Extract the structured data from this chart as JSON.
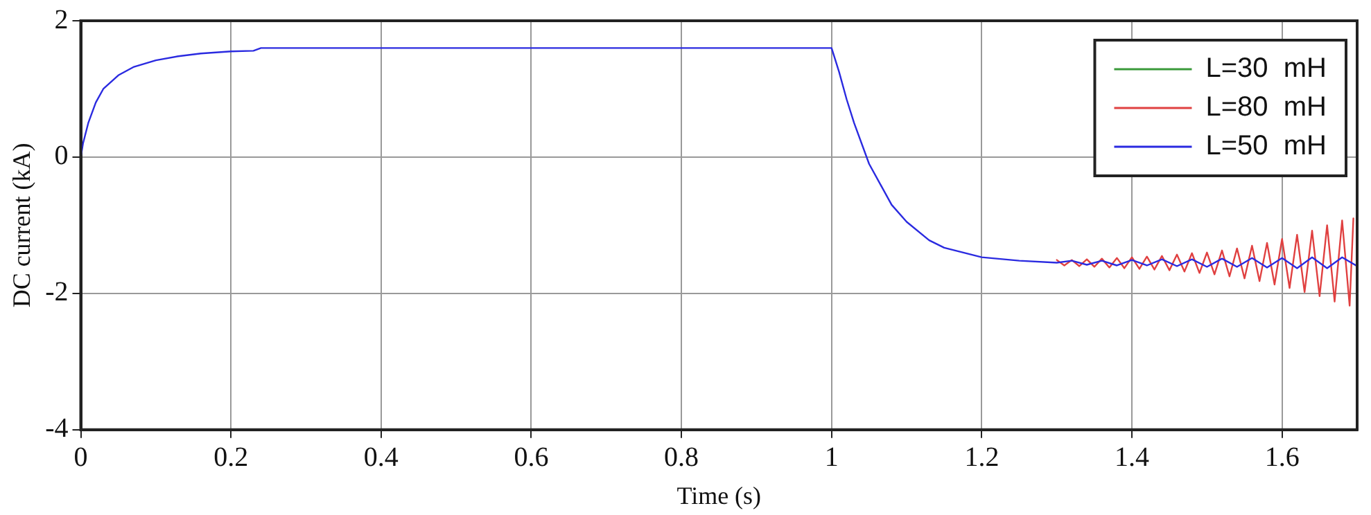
{
  "chart_data": {
    "type": "line",
    "xlabel": "Time (s)",
    "ylabel": "DC current (kA)",
    "xlim": [
      0,
      1.7
    ],
    "xticks": [
      0,
      0.2,
      0.4,
      0.6,
      0.8,
      1,
      1.2,
      1.4,
      1.6
    ],
    "ylim": [
      -4,
      2
    ],
    "yticks": [
      -4,
      -2,
      0,
      2
    ],
    "grid": true,
    "legend": "top right",
    "marker": "none",
    "line_style": "solid",
    "series": [
      {
        "name": "L=30  mH",
        "color": "#3a9a3a"
      },
      {
        "name": "L=80  mH",
        "color": "#e04040",
        "x": [
          1.3,
          1.31,
          1.32,
          1.33,
          1.34,
          1.35,
          1.36,
          1.37,
          1.38,
          1.39,
          1.4,
          1.41,
          1.42,
          1.43,
          1.44,
          1.45,
          1.46,
          1.47,
          1.48,
          1.49,
          1.5,
          1.51,
          1.52,
          1.53,
          1.54,
          1.55,
          1.56,
          1.57,
          1.58,
          1.59,
          1.6,
          1.61,
          1.62,
          1.63,
          1.64,
          1.65,
          1.66,
          1.67,
          1.68,
          1.69,
          1.695
        ],
        "values": [
          -1.51,
          -1.59,
          -1.51,
          -1.6,
          -1.5,
          -1.61,
          -1.49,
          -1.62,
          -1.48,
          -1.63,
          -1.47,
          -1.64,
          -1.46,
          -1.65,
          -1.45,
          -1.66,
          -1.43,
          -1.68,
          -1.41,
          -1.7,
          -1.4,
          -1.72,
          -1.37,
          -1.75,
          -1.34,
          -1.78,
          -1.3,
          -1.82,
          -1.26,
          -1.87,
          -1.2,
          -1.92,
          -1.14,
          -1.98,
          -1.08,
          -2.04,
          -1.0,
          -2.12,
          -0.93,
          -2.18,
          -0.9
        ]
      },
      {
        "name": "L=50  mH",
        "color": "#2a2ae0",
        "x": [
          0,
          0.003,
          0.01,
          0.02,
          0.03,
          0.05,
          0.07,
          0.1,
          0.13,
          0.16,
          0.2,
          0.23,
          0.24,
          1.0,
          1.01,
          1.02,
          1.03,
          1.05,
          1.08,
          1.1,
          1.13,
          1.15,
          1.2,
          1.25,
          1.3,
          1.32,
          1.34,
          1.36,
          1.38,
          1.4,
          1.42,
          1.44,
          1.46,
          1.48,
          1.5,
          1.52,
          1.54,
          1.56,
          1.58,
          1.6,
          1.62,
          1.64,
          1.66,
          1.68,
          1.7
        ],
        "values": [
          0,
          0.2,
          0.5,
          0.8,
          1.0,
          1.2,
          1.32,
          1.42,
          1.48,
          1.52,
          1.55,
          1.56,
          1.6,
          1.6,
          1.25,
          0.85,
          0.5,
          -0.1,
          -0.7,
          -0.95,
          -1.22,
          -1.33,
          -1.47,
          -1.52,
          -1.55,
          -1.52,
          -1.58,
          -1.52,
          -1.59,
          -1.51,
          -1.59,
          -1.5,
          -1.6,
          -1.5,
          -1.61,
          -1.49,
          -1.61,
          -1.48,
          -1.62,
          -1.48,
          -1.63,
          -1.47,
          -1.63,
          -1.47,
          -1.6
        ]
      }
    ]
  }
}
